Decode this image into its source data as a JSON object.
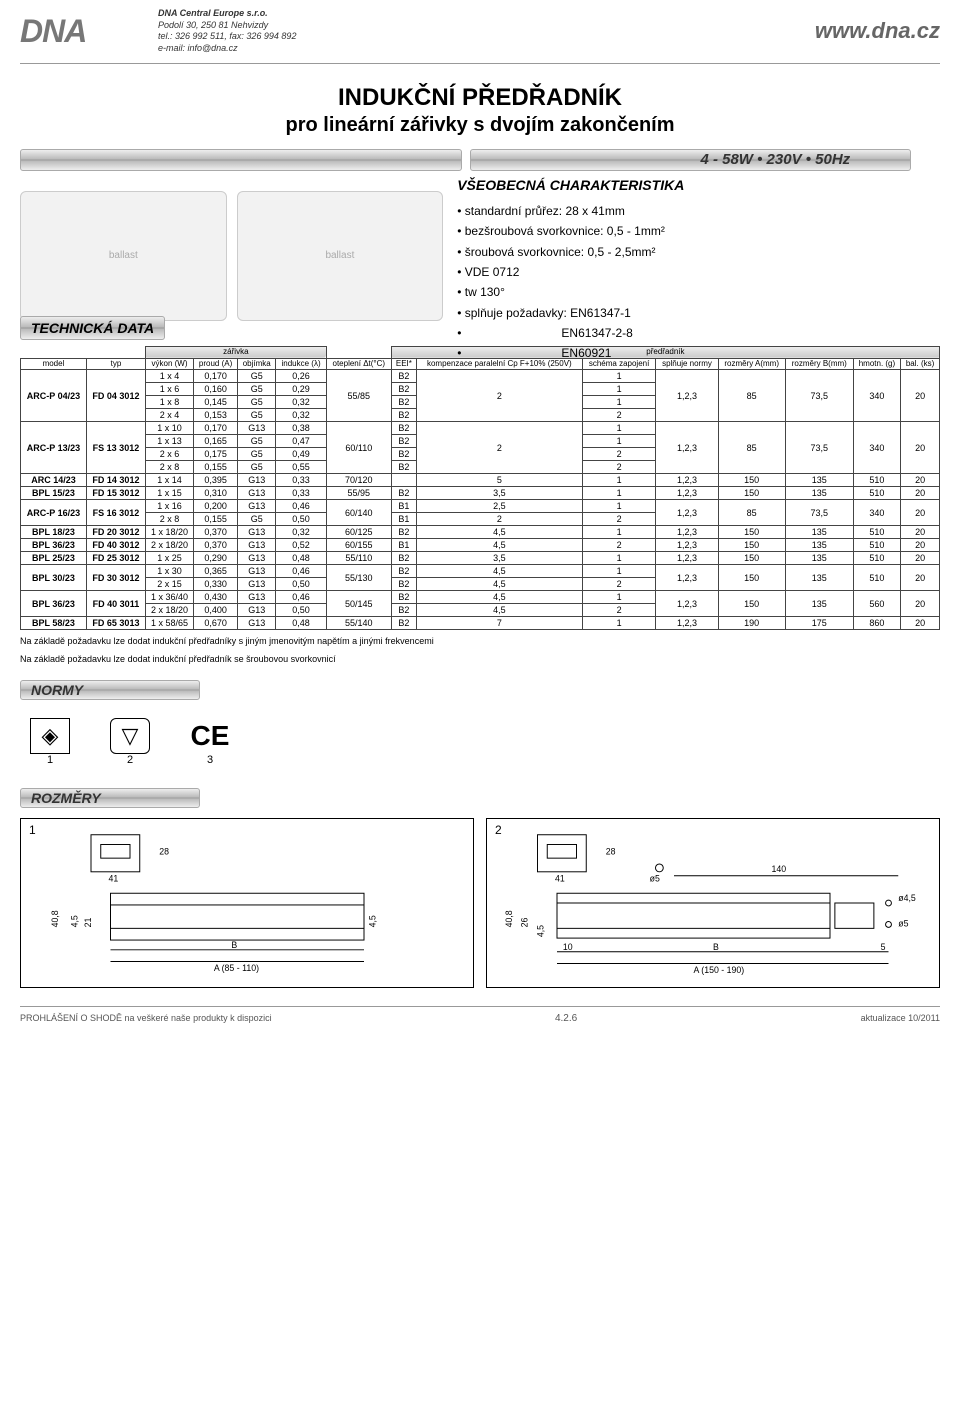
{
  "header": {
    "logo_text": "DNA",
    "company": "DNA Central Europe s.r.o.",
    "address": "Podolí 30, 250 81 Nehvizdy",
    "tel": "tel.: 326 992 511, fax: 326 994 892",
    "email": "e-mail: info@dna.cz",
    "website": "www.dna.cz"
  },
  "title": {
    "main": "INDUKČNÍ PŘEDŘADNÍK",
    "sub": "pro lineární zářivky s dvojím zakončením"
  },
  "specbar": "4 - 58W • 230V • 50Hz",
  "charac": {
    "heading": "VŠEOBECNÁ CHARAKTERISTIKA",
    "items": [
      "standardní průřez: 28 x 41mm",
      "bezšroubová svorkovnice: 0,5 - 1mm²",
      "šroubová svorkovnice: 0,5 - 2,5mm²",
      "VDE 0712",
      "tw 130°",
      "splňuje požadavky: EN61347-1",
      "                             EN61347-2-8",
      "                             EN60921"
    ]
  },
  "tech_data_label": "TECHNICKÁ DATA",
  "table": {
    "group_lamp": "zářivka",
    "group_ballast": "předřadník",
    "cols": [
      "model",
      "typ",
      "výkon (W)",
      "proud (A)",
      "objímka",
      "indukce (λ)",
      "oteplení Δt(°C)",
      "EEI*",
      "kompenzace paralelní Cp F+10% (250V)",
      "schéma zapojení",
      "splňuje normy",
      "rozměry A(mm)",
      "rozměry B(mm)",
      "hmotn. (g)",
      "bal. (ks)"
    ],
    "rows": [
      {
        "model": "ARC-P 04/23",
        "typ": "FD 04 3012",
        "span": 4,
        "sub": [
          [
            "1 x 4",
            "0,170",
            "G5",
            "0,26"
          ],
          [
            "1 x 6",
            "0,160",
            "G5",
            "0,29"
          ],
          [
            "1 x 8",
            "0,145",
            "G5",
            "0,32"
          ],
          [
            "2 x 4",
            "0,153",
            "G5",
            "0,32"
          ]
        ],
        "otep": "55/85",
        "eei": [
          "B2",
          "B2",
          "B2",
          "B2"
        ],
        "comp": "2",
        "schema": [
          "1",
          "1",
          "1",
          "2"
        ],
        "normy": "1,2,3",
        "A": "85",
        "B": "73,5",
        "g": "340",
        "ks": "20"
      },
      {
        "model": "ARC-P 13/23",
        "typ": "FS 13 3012",
        "span": 4,
        "sub": [
          [
            "1 x 10",
            "0,170",
            "G13",
            "0,38"
          ],
          [
            "1 x 13",
            "0,165",
            "G5",
            "0,47"
          ],
          [
            "2 x 6",
            "0,175",
            "G5",
            "0,49"
          ],
          [
            "2 x 8",
            "0,155",
            "G5",
            "0,55"
          ]
        ],
        "otep": "60/110",
        "eei": [
          "B2",
          "B2",
          "B2",
          "B2"
        ],
        "comp": "2",
        "schema": [
          "1",
          "1",
          "2",
          "2"
        ],
        "normy": "1,2,3",
        "A": "85",
        "B": "73,5",
        "g": "340",
        "ks": "20"
      },
      {
        "model": "ARC 14/23",
        "typ": "FD 14 3012",
        "span": 1,
        "sub": [
          [
            "1 x 14",
            "0,395",
            "G13",
            "0,33"
          ]
        ],
        "otep": "70/120",
        "eei": [
          ""
        ],
        "comp": "5",
        "schema": [
          "1"
        ],
        "normy": "1,2,3",
        "A": "150",
        "B": "135",
        "g": "510",
        "ks": "20"
      },
      {
        "model": "BPL 15/23",
        "typ": "FD 15 3012",
        "span": 1,
        "sub": [
          [
            "1 x 15",
            "0,310",
            "G13",
            "0,33"
          ]
        ],
        "otep": "55/95",
        "eei": [
          "B2"
        ],
        "comp": "3,5",
        "schema": [
          "1"
        ],
        "normy": "1,2,3",
        "A": "150",
        "B": "135",
        "g": "510",
        "ks": "20"
      },
      {
        "model": "ARC-P 16/23",
        "typ": "FS 16 3012",
        "span": 2,
        "sub": [
          [
            "1 x 16",
            "0,200",
            "G13",
            "0,46"
          ],
          [
            "2 x 8",
            "0,155",
            "G5",
            "0,50"
          ]
        ],
        "otep": "60/140",
        "eei": [
          "B1",
          "B1"
        ],
        "comp_multi": [
          "2,5",
          "2"
        ],
        "schema": [
          "1",
          "2"
        ],
        "normy": "1,2,3",
        "A": "85",
        "B": "73,5",
        "g": "340",
        "ks": "20"
      },
      {
        "model": "BPL 18/23",
        "typ": "FD 20 3012",
        "span": 1,
        "sub": [
          [
            "1 x 18/20",
            "0,370",
            "G13",
            "0,32"
          ]
        ],
        "otep": "60/125",
        "eei": [
          "B2"
        ],
        "comp": "4,5",
        "schema": [
          "1"
        ],
        "normy": "1,2,3",
        "A": "150",
        "B": "135",
        "g": "510",
        "ks": "20"
      },
      {
        "model": "BPL 36/23",
        "typ": "FD 40 3012",
        "span": 1,
        "sub": [
          [
            "2 x 18/20",
            "0,370",
            "G13",
            "0,52"
          ]
        ],
        "otep": "60/155",
        "eei": [
          "B1"
        ],
        "comp": "4,5",
        "schema": [
          "2"
        ],
        "normy": "1,2,3",
        "A": "150",
        "B": "135",
        "g": "510",
        "ks": "20"
      },
      {
        "model": "BPL 25/23",
        "typ": "FD 25 3012",
        "span": 1,
        "sub": [
          [
            "1 x 25",
            "0,290",
            "G13",
            "0,48"
          ]
        ],
        "otep": "55/110",
        "eei": [
          "B2"
        ],
        "comp": "3,5",
        "schema": [
          "1"
        ],
        "normy": "1,2,3",
        "A": "150",
        "B": "135",
        "g": "510",
        "ks": "20"
      },
      {
        "model": "BPL 30/23",
        "typ": "FD 30 3012",
        "span": 2,
        "sub": [
          [
            "1 x 30",
            "0,365",
            "G13",
            "0,46"
          ],
          [
            "2 x 15",
            "0,330",
            "G13",
            "0,50"
          ]
        ],
        "otep": "55/130",
        "eei": [
          "B2",
          "B2"
        ],
        "comp_multi": [
          "4,5",
          "4,5"
        ],
        "schema": [
          "1",
          "2"
        ],
        "normy": "1,2,3",
        "A": "150",
        "B": "135",
        "g": "510",
        "ks": "20"
      },
      {
        "model": "BPL 36/23",
        "typ": "FD 40 3011",
        "span": 2,
        "sub": [
          [
            "1 x 36/40",
            "0,430",
            "G13",
            "0,46"
          ],
          [
            "2 x 18/20",
            "0,400",
            "G13",
            "0,50"
          ]
        ],
        "otep": "50/145",
        "eei": [
          "B2",
          "B2"
        ],
        "comp_multi": [
          "4,5",
          "4,5"
        ],
        "schema": [
          "1",
          "2"
        ],
        "normy": "1,2,3",
        "A": "150",
        "B": "135",
        "g": "560",
        "ks": "20"
      },
      {
        "model": "BPL 58/23",
        "typ": "FD 65 3013",
        "span": 1,
        "sub": [
          [
            "1 x 58/65",
            "0,670",
            "G13",
            "0,48"
          ]
        ],
        "otep": "55/140",
        "eei": [
          "B2"
        ],
        "comp": "7",
        "schema": [
          "1"
        ],
        "normy": "1,2,3",
        "A": "190",
        "B": "175",
        "g": "860",
        "ks": "20"
      }
    ]
  },
  "footnotes": [
    "Na základě požadavku lze dodat indukční předřadníky s jiným jmenovitým napětím a jinými frekvencemi",
    "Na základě požadavku lze dodat indukční předřadník se šroubovou svorkovnicí"
  ],
  "sections": {
    "normy": "NORMY",
    "rozmery": "ROZMĚRY"
  },
  "norms": [
    "1",
    "2",
    "3"
  ],
  "dims": {
    "panel1": {
      "label": "1",
      "h1": "28",
      "w1": "41",
      "h2": "40,8",
      "h3": "4,5",
      "h4": "21",
      "h5": "4,5",
      "B": "B",
      "A": "A (85 - 110)"
    },
    "panel2": {
      "label": "2",
      "h1": "28",
      "w1": "41",
      "h2": "40,8",
      "h3": "26",
      "d5": "ø5",
      "d45": "ø4,5",
      "w140": "140",
      "h45": "4,5",
      "ten": "10",
      "B": "B",
      "five": "5",
      "A": "A (150 - 190)"
    }
  },
  "footer": {
    "left": "PROHLÁŠENÍ O SHODĚ na veškeré naše produkty k dispozici",
    "center": "4.2.6",
    "right": "aktualizace 10/2011"
  }
}
